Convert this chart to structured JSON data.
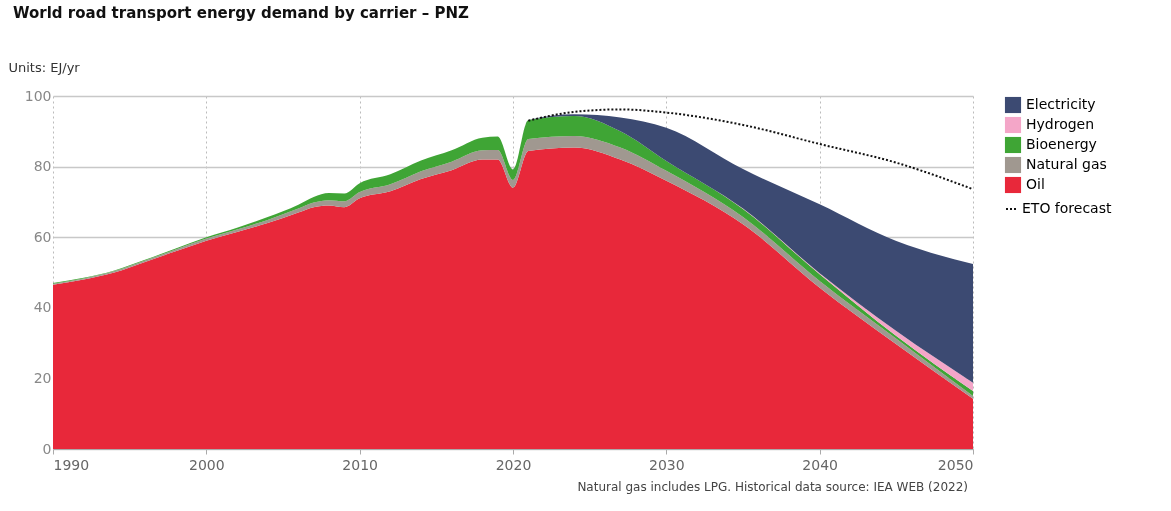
{
  "chart_data": {
    "type": "area",
    "title": "World road transport energy demand by carrier – PNZ",
    "ylabel": "Units: EJ/yr",
    "annotations": [
      "Natural gas includes LPG. Historical data source: IEA WEB (2022)"
    ],
    "x": [
      1990,
      1992,
      1994,
      1996,
      1998,
      2000,
      2002,
      2004,
      2006,
      2007,
      2008,
      2009,
      2010,
      2012,
      2014,
      2016,
      2018,
      2019,
      2020,
      2021,
      2024,
      2027,
      2030,
      2035,
      2040,
      2045,
      2050
    ],
    "stacked": true,
    "series": [
      {
        "name": "Oil",
        "color": "#e8283a",
        "values": [
          46.5,
          48,
          50,
          53,
          56,
          59,
          61.5,
          64,
          67,
          68.5,
          69,
          68.5,
          71,
          73,
          76.5,
          79,
          82,
          82,
          74,
          84.4,
          85.4,
          82,
          76,
          63.7,
          45.7,
          29.7,
          14.2
        ]
      },
      {
        "name": "Natural gas",
        "color": "#a09890",
        "values": [
          0.3,
          0.3,
          0.4,
          0.4,
          0.5,
          0.6,
          0.7,
          0.9,
          1.1,
          1.3,
          1.5,
          1.7,
          1.8,
          2,
          2.2,
          2.4,
          2.6,
          2.7,
          2.2,
          3.4,
          3.3,
          3.4,
          2.8,
          2,
          1.9,
          1.5,
          0.8
        ]
      },
      {
        "name": "Bioenergy",
        "color": "#3fa535",
        "values": [
          0.2,
          0.2,
          0.2,
          0.2,
          0.3,
          0.4,
          0.5,
          0.8,
          1.1,
          1.6,
          2,
          2.2,
          2.5,
          2.8,
          3,
          3.2,
          3.6,
          3.8,
          3,
          5.4,
          5.6,
          4.6,
          2.8,
          2.3,
          1.9,
          0.8,
          1.4
        ]
      },
      {
        "name": "Hydrogen",
        "color": "#f4a6c8",
        "values": [
          0,
          0,
          0,
          0,
          0,
          0,
          0,
          0,
          0,
          0,
          0,
          0,
          0,
          0,
          0,
          0,
          0,
          0,
          0,
          0,
          0,
          0,
          0,
          0.1,
          0.3,
          1.4,
          2.4
        ]
      },
      {
        "name": "Electricity",
        "color": "#3c4a72",
        "values": [
          0,
          0,
          0,
          0,
          0,
          0,
          0,
          0,
          0,
          0,
          0,
          0,
          0,
          0,
          0,
          0,
          0,
          0,
          0,
          0,
          0.5,
          3.9,
          9.4,
          11.2,
          19.5,
          25.5,
          33.6
        ]
      },
      {
        "name": "ETO forecast",
        "type": "line",
        "color": "#111111",
        "line_style": "dotted",
        "x": [
          2021,
          2024,
          2027,
          2030,
          2035,
          2040,
          2045,
          2050
        ],
        "values": [
          93,
          95.5,
          96.2,
          95.3,
          91.8,
          86.4,
          81.1,
          73.6
        ]
      }
    ],
    "xlim": [
      1990,
      2050
    ],
    "xticks": [
      1990,
      2000,
      2010,
      2020,
      2030,
      2040,
      2050
    ],
    "ylim": [
      0,
      100
    ],
    "yticks": [
      0,
      20,
      40,
      60,
      80,
      100
    ],
    "grid": true,
    "legend": "right"
  }
}
